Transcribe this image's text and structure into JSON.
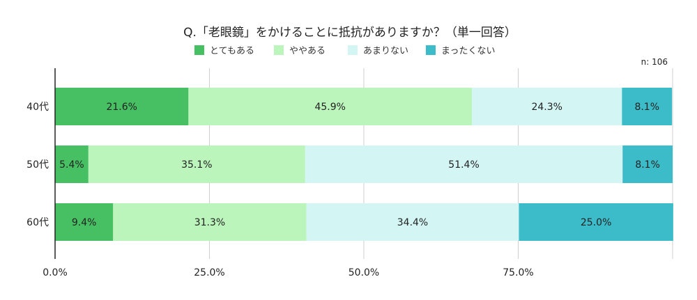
{
  "chart_data": {
    "type": "bar",
    "orientation": "horizontal",
    "stacked": true,
    "title": "Q.「老眼鏡」をかけることに抵抗がありますか？（単一回答）",
    "note": "n: 106",
    "categories": [
      "40代",
      "50代",
      "60代"
    ],
    "series": [
      {
        "name": "とてもある",
        "color": "#46c063",
        "values": [
          21.6,
          5.4,
          9.4
        ],
        "labels": [
          "21.6%",
          "5.4%",
          "9.4%"
        ]
      },
      {
        "name": "ややある",
        "color": "#bbf5bb",
        "values": [
          45.9,
          35.1,
          31.3
        ],
        "labels": [
          "45.9%",
          "35.1%",
          "31.3%"
        ]
      },
      {
        "name": "あまりない",
        "color": "#d3f6f5",
        "values": [
          24.3,
          51.4,
          34.4
        ],
        "labels": [
          "24.3%",
          "51.4%",
          "34.4%"
        ]
      },
      {
        "name": "まったくない",
        "color": "#3cbcc8",
        "values": [
          8.1,
          8.1,
          25.0
        ],
        "labels": [
          "8.1%",
          "8.1%",
          "25.0%"
        ]
      }
    ],
    "xlim": [
      0,
      100
    ],
    "ticks": [
      0,
      25,
      50,
      75,
      100
    ],
    "tick_labels": [
      "0.0%",
      "25.0%",
      "50.0%",
      "75.0%",
      ""
    ],
    "grid": true,
    "legend": "top"
  }
}
